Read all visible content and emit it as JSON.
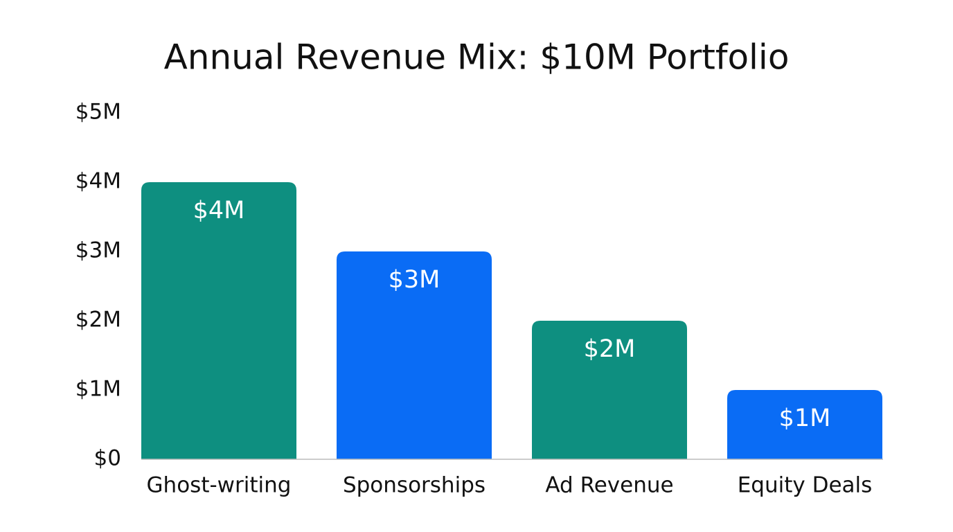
{
  "chart_data": {
    "type": "bar",
    "title": "Annual Revenue Mix: $10M Portfolio",
    "categories": [
      "Ghost-writing",
      "Sponsorships",
      "Ad Revenue",
      "Equity Deals"
    ],
    "values": [
      4000000,
      3000000,
      2000000,
      1000000
    ],
    "value_labels": [
      "$4M",
      "$3M",
      "$2M",
      "$1M"
    ],
    "colors": [
      "#0e8f80",
      "#0a6cf5",
      "#0e8f80",
      "#0a6cf5"
    ],
    "ylim": [
      0,
      5000000
    ],
    "yticks": [
      {
        "value": 0,
        "label": "$0"
      },
      {
        "value": 1000000,
        "label": "$1M"
      },
      {
        "value": 2000000,
        "label": "$2M"
      },
      {
        "value": 3000000,
        "label": "$3M"
      },
      {
        "value": 4000000,
        "label": "$4M"
      },
      {
        "value": 5000000,
        "label": "$5M"
      }
    ],
    "grid": false
  }
}
